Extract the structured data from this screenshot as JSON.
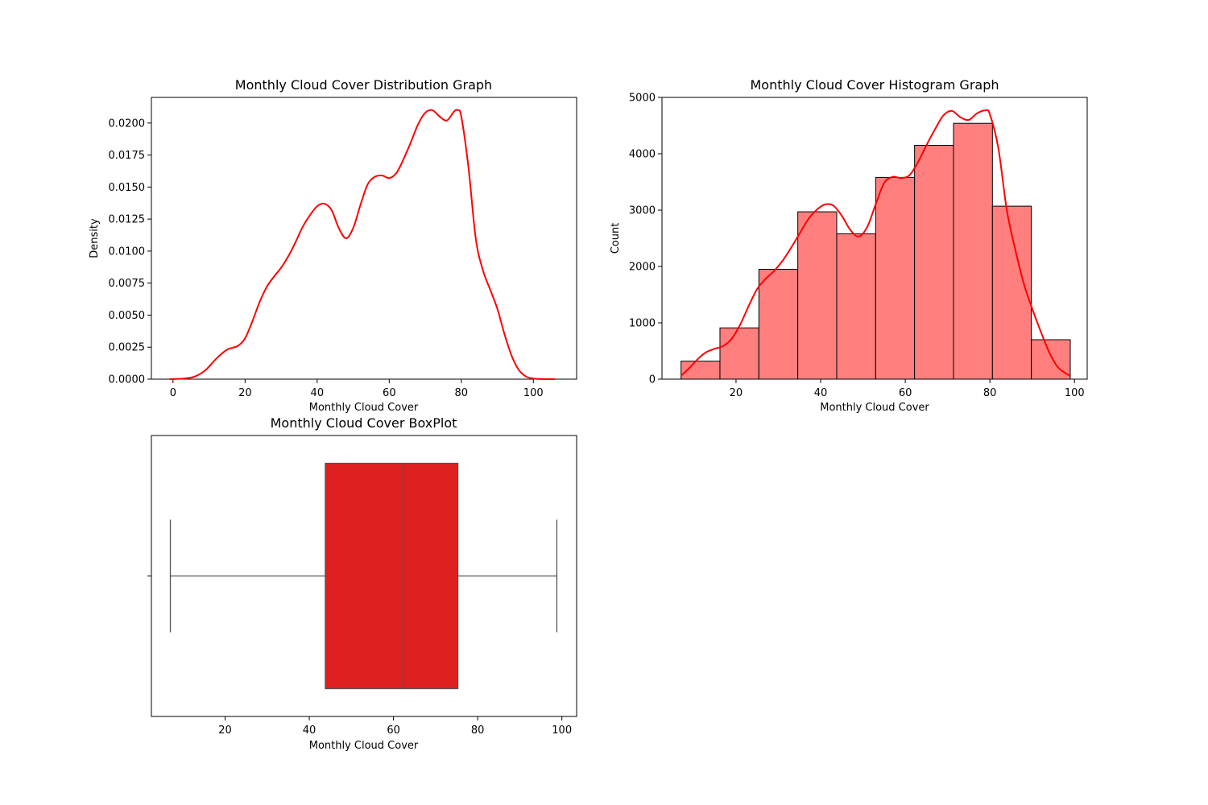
{
  "colors": {
    "kde": "#ff0000",
    "hist_fill": "#ff7f7f",
    "box_fill": "#de2020",
    "box_line": "#555555",
    "axis": "#000000"
  },
  "chart_data": [
    {
      "type": "line",
      "title": "Monthly Cloud Cover Distribution Graph",
      "xlabel": "Monthly Cloud Cover",
      "ylabel": "Density",
      "xlim": [
        -6,
        112
      ],
      "ylim": [
        0,
        0.022
      ],
      "xticks": [
        "0",
        "20",
        "40",
        "60",
        "80",
        "100"
      ],
      "yticks": [
        "0.0000",
        "0.0025",
        "0.0050",
        "0.0075",
        "0.0100",
        "0.0125",
        "0.0150",
        "0.0175",
        "0.0200"
      ],
      "series": [
        {
          "x": [
            -1,
            3,
            6,
            9,
            12,
            15,
            18,
            20,
            22,
            24,
            26,
            28,
            30,
            32,
            34,
            36,
            38,
            40,
            42,
            44,
            46,
            48,
            50,
            52,
            54,
            56,
            58,
            60,
            62,
            64,
            66,
            68,
            70,
            72,
            74,
            76,
            78,
            79,
            80,
            82,
            84,
            86,
            88,
            90,
            92,
            94,
            96,
            98,
            100,
            103,
            106
          ],
          "y": [
            0.0,
            5e-05,
            0.0002,
            0.0007,
            0.0016,
            0.0023,
            0.0026,
            0.0032,
            0.0045,
            0.006,
            0.0072,
            0.008,
            0.0087,
            0.0096,
            0.0107,
            0.0119,
            0.0128,
            0.0135,
            0.0137,
            0.0132,
            0.0118,
            0.011,
            0.0118,
            0.0136,
            0.0152,
            0.0158,
            0.0159,
            0.0157,
            0.0161,
            0.0172,
            0.0185,
            0.0199,
            0.0208,
            0.021,
            0.0205,
            0.0202,
            0.0209,
            0.021,
            0.0205,
            0.0165,
            0.011,
            0.0085,
            0.007,
            0.0055,
            0.0035,
            0.0018,
            0.0007,
            0.0002,
            5e-05,
            0.0,
            0.0
          ]
        }
      ]
    },
    {
      "type": "bar",
      "title": "Monthly Cloud Cover Histogram Graph",
      "xlabel": "Monthly Cloud Cover",
      "ylabel": "Count",
      "xlim": [
        2.5,
        103
      ],
      "ylim": [
        0,
        5000
      ],
      "xticks": [
        "20",
        "40",
        "60",
        "80",
        "100"
      ],
      "yticks": [
        "0",
        "1000",
        "2000",
        "3000",
        "4000",
        "5000"
      ],
      "bin_edges": [
        7,
        16.2,
        25.4,
        34.6,
        43.8,
        53,
        62.2,
        71.4,
        80.6,
        89.8,
        99
      ],
      "values": [
        320,
        910,
        1950,
        2970,
        2580,
        3580,
        4150,
        4540,
        3070,
        700
      ],
      "series": [
        {
          "x": [
            7,
            9,
            11,
            13,
            15,
            17,
            19,
            21,
            23,
            25,
            27,
            29,
            31,
            33,
            35,
            37,
            39,
            41,
            43,
            45,
            47,
            49,
            51,
            53,
            55,
            57,
            59,
            61,
            63,
            65,
            67,
            69,
            71,
            73,
            75,
            77,
            79,
            80,
            82,
            84,
            86,
            88,
            90,
            92,
            94,
            96,
            98,
            99
          ],
          "y": [
            60,
            200,
            360,
            480,
            540,
            590,
            720,
            970,
            1300,
            1600,
            1780,
            1920,
            2100,
            2330,
            2580,
            2830,
            3000,
            3100,
            3080,
            2900,
            2650,
            2530,
            2700,
            3100,
            3480,
            3590,
            3570,
            3620,
            3850,
            4150,
            4430,
            4680,
            4760,
            4650,
            4600,
            4720,
            4770,
            4700,
            4100,
            3000,
            2300,
            1700,
            1250,
            850,
            480,
            220,
            100,
            60
          ]
        }
      ]
    },
    {
      "type": "box",
      "title": "Monthly Cloud Cover BoxPlot",
      "xlabel": "Monthly Cloud Cover",
      "xlim": [
        2.5,
        103.5
      ],
      "xticks": [
        "20",
        "40",
        "60",
        "80",
        "100"
      ],
      "whisker_low": 7,
      "q1": 43.8,
      "median": 62.3,
      "q3": 75.3,
      "whisker_high": 98.8
    }
  ]
}
